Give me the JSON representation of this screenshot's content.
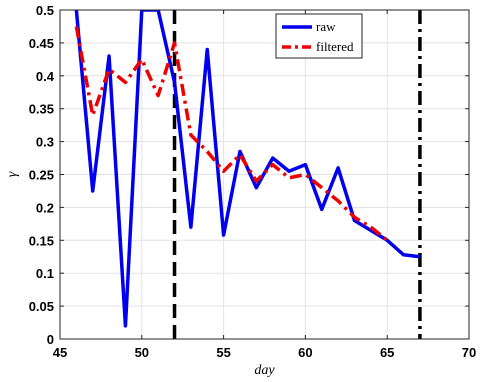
{
  "chart_data": {
    "type": "line",
    "title": "",
    "xlabel": "day",
    "ylabel": "γ",
    "xlim": [
      45,
      70
    ],
    "ylim": [
      0,
      0.5
    ],
    "xticks": [
      45,
      50,
      55,
      60,
      65,
      70
    ],
    "yticks": [
      0,
      0.05,
      0.1,
      0.15,
      0.2,
      0.25,
      0.3,
      0.35,
      0.4,
      0.45,
      0.5
    ],
    "xtick_labels": [
      "45",
      "50",
      "55",
      "60",
      "65",
      "70"
    ],
    "ytick_labels": [
      "0",
      "0.05",
      "0.1",
      "0.15",
      "0.2",
      "0.25",
      "0.3",
      "0.35",
      "0.4",
      "0.45",
      "0.5"
    ],
    "grid": true,
    "legend_position": "top-right",
    "series": [
      {
        "name": "raw",
        "color": "#0000ee",
        "style": "solid",
        "x": [
          46,
          47,
          48,
          49,
          50,
          51,
          52,
          53,
          54,
          55,
          56,
          57,
          58,
          59,
          60,
          61,
          62,
          63,
          64,
          65,
          66,
          67
        ],
        "y": [
          0.5,
          0.225,
          0.43,
          0.02,
          0.5,
          0.5,
          0.39,
          0.17,
          0.44,
          0.158,
          0.285,
          0.23,
          0.275,
          0.255,
          0.265,
          0.197,
          0.26,
          0.18,
          0.165,
          0.15,
          0.128,
          0.125
        ]
      },
      {
        "name": "filtered",
        "color": "#ee0000",
        "style": "dashdot",
        "x": [
          46,
          47,
          48,
          49,
          50,
          51,
          52,
          53,
          54,
          55,
          56,
          57,
          58,
          59,
          60,
          61,
          62,
          63,
          64,
          65
        ],
        "y": [
          0.475,
          0.34,
          0.41,
          0.39,
          0.425,
          0.37,
          0.45,
          0.31,
          0.285,
          0.255,
          0.28,
          0.24,
          0.265,
          0.245,
          0.25,
          0.23,
          0.21,
          0.185,
          0.17,
          0.15
        ]
      }
    ],
    "vlines": [
      {
        "x": 52,
        "style": "dashed",
        "color": "#000000"
      },
      {
        "x": 67,
        "style": "dashdot",
        "color": "#000000"
      }
    ]
  }
}
